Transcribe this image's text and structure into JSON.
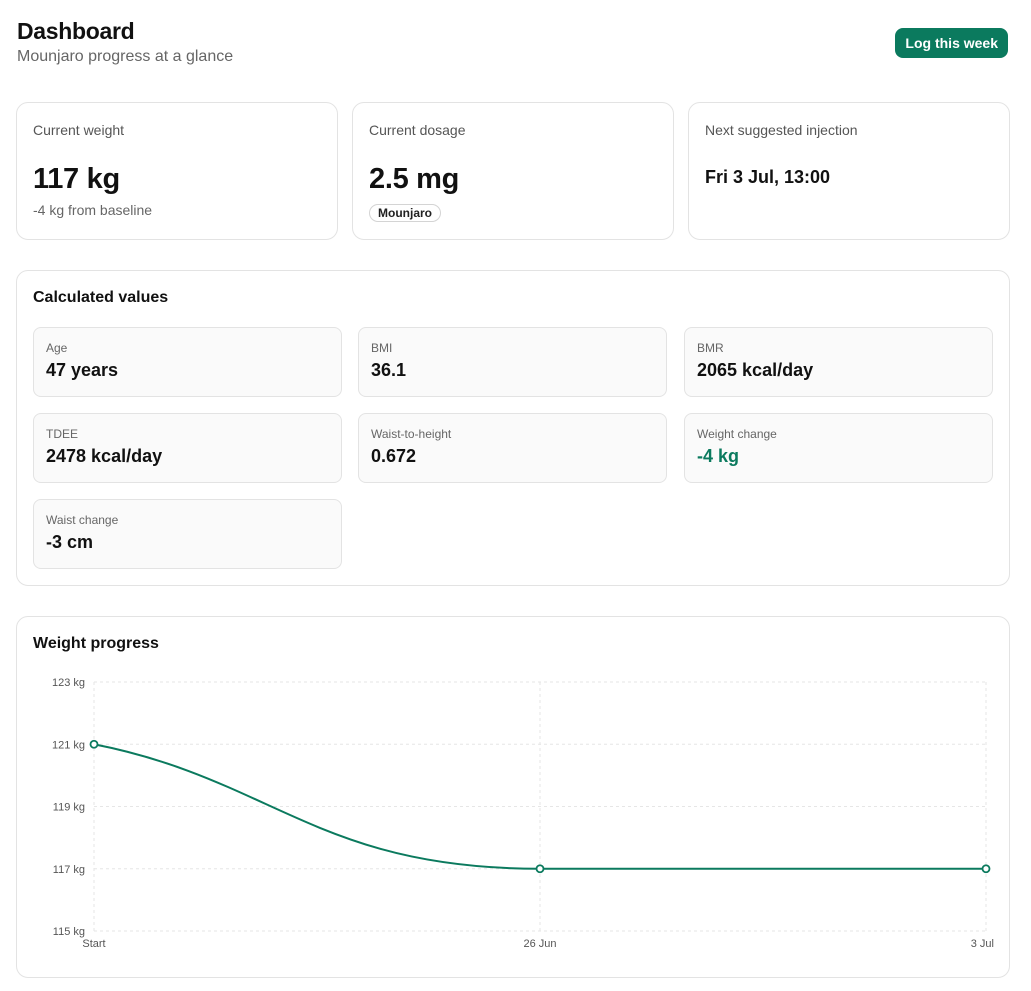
{
  "header": {
    "title": "Dashboard",
    "subtitle": "Mounjaro progress at a glance",
    "log_button": "Log this week"
  },
  "stats": {
    "weight": {
      "label": "Current weight",
      "value": "117 kg",
      "sub": "-4 kg from baseline"
    },
    "dosage": {
      "label": "Current dosage",
      "value": "2.5 mg",
      "badge": "Mounjaro"
    },
    "next": {
      "label": "Next suggested injection",
      "value": "Fri 3 Jul, 13:00"
    }
  },
  "calculated": {
    "title": "Calculated values",
    "items": [
      {
        "label": "Age",
        "value": "47 years"
      },
      {
        "label": "BMI",
        "value": "36.1"
      },
      {
        "label": "BMR",
        "value": "2065 kcal/day"
      },
      {
        "label": "TDEE",
        "value": "2478 kcal/day"
      },
      {
        "label": "Waist-to-height",
        "value": "0.672"
      },
      {
        "label": "Weight change",
        "value": "-4 kg"
      },
      {
        "label": "Waist change",
        "value": "-3 cm"
      }
    ]
  },
  "colors": {
    "accent": "#0b7a5e",
    "border": "#e3e3e3",
    "grid": "#e6e6e6"
  },
  "chart_data": {
    "type": "line",
    "title": "Weight progress",
    "categories": [
      "Start",
      "26 Jun",
      "3 Jul"
    ],
    "series": [
      {
        "values": [
          121,
          117,
          117
        ]
      }
    ],
    "yticks": [
      115,
      117,
      119,
      121,
      123
    ],
    "ytick_labels": [
      "115 kg",
      "117 kg",
      "119 kg",
      "121 kg",
      "123 kg"
    ],
    "ylim": [
      115,
      123
    ],
    "grid": true
  }
}
